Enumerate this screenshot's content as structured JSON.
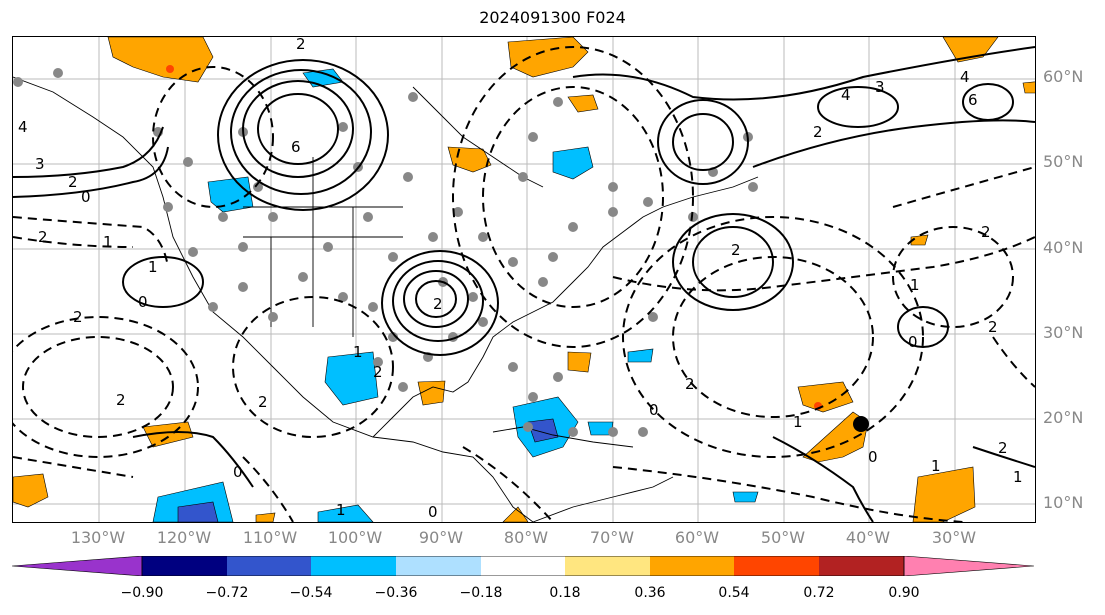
{
  "title": "2024091300 F024",
  "lat_labels": [
    "60°N",
    "50°N",
    "40°N",
    "30°N",
    "20°N",
    "10°N"
  ],
  "lon_labels": [
    "130°W",
    "120°W",
    "110°W",
    "100°W",
    "90°W",
    "80°W",
    "70°W",
    "60°W",
    "50°W",
    "40°W",
    "30°W"
  ],
  "colorbar": {
    "colors": [
      "#9933cc",
      "#000080",
      "#3355cc",
      "#00bfff",
      "#aee0ff",
      "#ffffff",
      "#ffe680",
      "#ffa500",
      "#ff4500",
      "#b22222",
      "#ff80b0"
    ],
    "ticks": [
      "−0.90",
      "−0.72",
      "−0.54",
      "−0.36",
      "−0.18",
      "0.18",
      "0.36",
      "0.54",
      "0.72",
      "0.90"
    ]
  },
  "contour_labels": [
    "3",
    "2",
    "0",
    "1",
    "2",
    "4",
    "6",
    "2",
    "1",
    "0",
    "2",
    "2",
    "2",
    "1",
    "6",
    "4",
    "3",
    "2",
    "2",
    "2",
    "4",
    "1",
    "2",
    "0",
    "1",
    "2",
    "0",
    "1",
    "2",
    "0",
    "0",
    "2",
    "2",
    "1",
    "0",
    "1"
  ]
}
